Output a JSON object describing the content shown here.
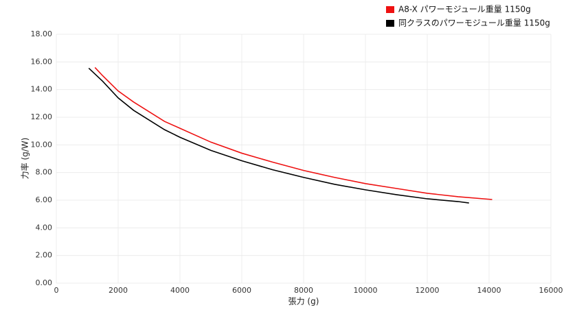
{
  "chart_data": {
    "type": "line",
    "x_label": "張力 (g)",
    "y_label": "力率 (g/W)",
    "xlim": [
      0,
      16000
    ],
    "xticks": [
      0,
      2000,
      4000,
      6000,
      8000,
      10000,
      12000,
      14000,
      16000
    ],
    "ylim": [
      0,
      18
    ],
    "yticks": [
      {
        "value": 0,
        "label": "0.00"
      },
      {
        "value": 2,
        "label": "2.00"
      },
      {
        "value": 4,
        "label": "4.00"
      },
      {
        "value": 6,
        "label": "6.00"
      },
      {
        "value": 8,
        "label": "8.00"
      },
      {
        "value": 10,
        "label": "10.00"
      },
      {
        "value": 12,
        "label": "12.00"
      },
      {
        "value": 14,
        "label": "14.00"
      },
      {
        "value": 16,
        "label": "16.00"
      },
      {
        "value": 18,
        "label": "18.00"
      }
    ],
    "grid": true,
    "legend": "top-right",
    "series": [
      {
        "name": "A8-X パワーモジュール重量 1150g",
        "color": "#ee1111",
        "x": [
          1250,
          1500,
          2000,
          2500,
          3000,
          3500,
          4000,
          5000,
          6000,
          7000,
          8000,
          9000,
          10000,
          11000,
          12000,
          13000,
          14100
        ],
        "values": [
          15.6,
          15.0,
          13.9,
          13.1,
          12.4,
          11.7,
          11.2,
          10.2,
          9.4,
          8.75,
          8.15,
          7.65,
          7.2,
          6.85,
          6.5,
          6.25,
          6.05
        ]
      },
      {
        "name": "同クラスのパワーモジュール重量 1150g",
        "color": "#000000",
        "x": [
          1050,
          1500,
          2000,
          2500,
          3000,
          3500,
          4000,
          5000,
          6000,
          7000,
          8000,
          9000,
          10000,
          11000,
          12000,
          13000,
          13350
        ],
        "values": [
          15.55,
          14.6,
          13.4,
          12.5,
          11.8,
          11.1,
          10.55,
          9.6,
          8.85,
          8.2,
          7.65,
          7.15,
          6.75,
          6.4,
          6.1,
          5.9,
          5.8
        ]
      }
    ]
  }
}
